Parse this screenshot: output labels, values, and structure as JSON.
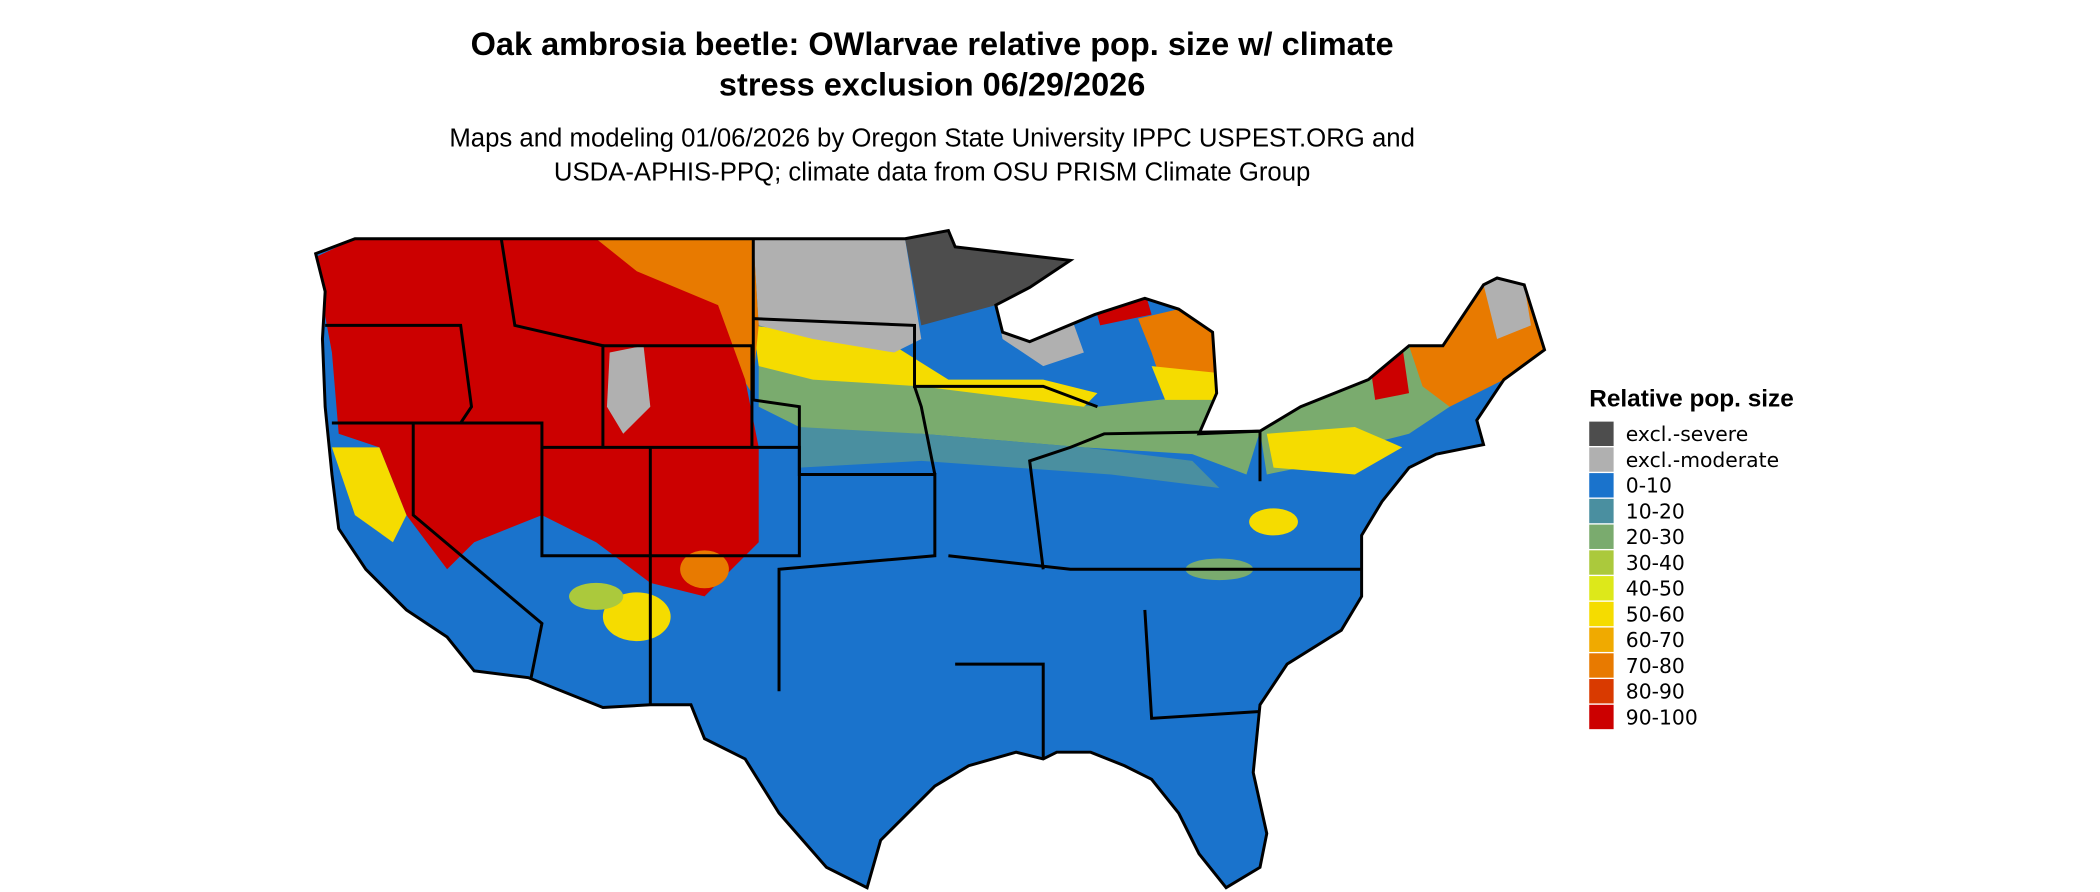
{
  "title_lines": [
    "Oak ambrosia beetle: OWlarvae relative pop. size w/ climate",
    "stress exclusion 06/29/2026"
  ],
  "subtitle_lines": [
    "Maps and modeling 01/06/2026 by Oregon State University IPPC USPEST.ORG and",
    "USDA-APHIS-PPQ; climate data from OSU PRISM Climate Group"
  ],
  "legend": {
    "title": "Relative pop. size",
    "items": [
      {
        "label": "excl.-severe",
        "color": "#4d4d4d"
      },
      {
        "label": "excl.-moderate",
        "color": "#b0b0b0"
      },
      {
        "label": "0-10",
        "color": "#1a73cc"
      },
      {
        "label": "10-20",
        "color": "#4a8fa0"
      },
      {
        "label": "20-30",
        "color": "#7aab6e"
      },
      {
        "label": "30-40",
        "color": "#abc93c"
      },
      {
        "label": "40-50",
        "color": "#dde81a"
      },
      {
        "label": "50-60",
        "color": "#f5dc00"
      },
      {
        "label": "60-70",
        "color": "#f0aa00"
      },
      {
        "label": "70-80",
        "color": "#e87a00"
      },
      {
        "label": "80-90",
        "color": "#d93a00"
      },
      {
        "label": "90-100",
        "color": "#cc0000"
      }
    ]
  }
}
